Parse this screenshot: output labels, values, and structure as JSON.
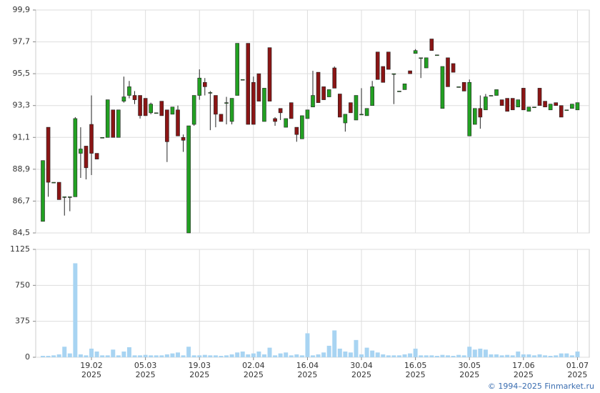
{
  "chart_data": {
    "type": "candlestick",
    "categories": [
      null,
      null,
      null,
      null,
      null,
      null,
      null,
      null,
      null,
      "19.02\n2025",
      null,
      null,
      null,
      null,
      null,
      null,
      null,
      null,
      null,
      "05.03\n2025",
      null,
      null,
      null,
      null,
      null,
      null,
      null,
      null,
      null,
      "19.03\n2025",
      null,
      null,
      null,
      null,
      null,
      null,
      null,
      null,
      null,
      "02.04\n2025",
      null,
      null,
      null,
      null,
      null,
      null,
      null,
      null,
      null,
      "16.04\n2025",
      null,
      null,
      null,
      null,
      null,
      null,
      null,
      null,
      null,
      "30.04\n2025",
      null,
      null,
      null,
      null,
      null,
      null,
      null,
      null,
      null,
      "16.05\n2025",
      null,
      null,
      null,
      null,
      null,
      null,
      null,
      null,
      null,
      "30.05\n2025",
      null,
      null,
      null,
      null,
      null,
      null,
      null,
      null,
      null,
      "17.06\n2025",
      null,
      null,
      null,
      null,
      null,
      null,
      null,
      null,
      null,
      "01.07\n2025"
    ],
    "open": [
      85.3,
      91.8,
      88.0,
      88.0,
      87.0,
      87.0,
      87.0,
      90.0,
      90.5,
      92.0,
      90.0,
      91.1,
      91.1,
      93.0,
      91.1,
      93.6,
      94.0,
      94.0,
      94.0,
      93.8,
      92.8,
      92.8,
      93.6,
      93.0,
      92.7,
      93.0,
      91.1,
      84.5,
      92.0,
      94.0,
      94.9,
      94.2,
      94.0,
      92.7,
      93.5,
      92.2,
      94.0,
      95.1,
      97.6,
      94.9,
      95.5,
      92.2,
      97.3,
      92.4,
      93.1,
      91.8,
      93.5,
      91.8,
      91.0,
      92.4,
      93.2,
      95.6,
      94.6,
      93.9,
      95.9,
      94.1,
      92.1,
      93.5,
      92.3,
      92.7,
      92.6,
      93.3,
      97.0,
      96.0,
      97.0,
      95.5,
      94.3,
      94.4,
      95.7,
      96.9,
      96.6,
      95.9,
      97.9,
      96.8,
      93.1,
      96.6,
      96.2,
      94.6,
      94.9,
      91.2,
      92.0,
      93.1,
      93.0,
      94.0,
      94.0,
      93.7,
      93.8,
      93.8,
      93.2,
      94.5,
      92.9,
      93.2,
      94.5,
      93.6,
      93.0,
      93.5,
      93.3,
      93.0,
      93.1,
      93.0
    ],
    "high": [
      89.5,
      91.8,
      88.0,
      88.0,
      87.0,
      87.0,
      92.5,
      91.8,
      90.5,
      94.0,
      90.0,
      91.1,
      93.7,
      93.0,
      93.0,
      95.3,
      95.0,
      94.3,
      94.0,
      93.8,
      93.5,
      92.8,
      93.6,
      93.0,
      93.2,
      93.3,
      91.3,
      91.9,
      94.0,
      95.8,
      95.2,
      94.3,
      94.0,
      92.7,
      93.9,
      93.8,
      97.6,
      95.1,
      97.6,
      95.3,
      95.5,
      94.5,
      97.3,
      92.5,
      93.1,
      92.4,
      93.5,
      91.8,
      92.6,
      93.0,
      95.7,
      95.6,
      94.6,
      94.4,
      96.0,
      94.1,
      92.7,
      93.5,
      94.0,
      94.5,
      93.1,
      95.0,
      97.0,
      96.0,
      97.0,
      95.5,
      94.3,
      94.8,
      95.7,
      97.2,
      96.6,
      96.6,
      97.9,
      96.8,
      96.0,
      96.6,
      96.2,
      94.6,
      94.9,
      95.1,
      93.1,
      94.0,
      94.1,
      94.0,
      94.4,
      93.7,
      93.8,
      93.8,
      93.7,
      94.5,
      93.2,
      93.2,
      94.5,
      93.6,
      93.4,
      93.5,
      93.3,
      93.0,
      93.4,
      93.5
    ],
    "low": [
      85.3,
      87.0,
      88.0,
      86.8,
      85.7,
      86.0,
      87.0,
      88.3,
      88.2,
      88.5,
      89.6,
      91.1,
      91.1,
      91.1,
      91.1,
      93.5,
      93.8,
      93.4,
      92.4,
      92.6,
      92.7,
      92.8,
      92.6,
      89.4,
      92.7,
      91.2,
      90.1,
      84.5,
      91.9,
      93.7,
      94.0,
      91.6,
      91.8,
      92.2,
      92.0,
      92.0,
      94.0,
      95.1,
      92.0,
      92.0,
      93.6,
      92.2,
      93.6,
      91.9,
      92.3,
      91.8,
      92.4,
      90.8,
      91.0,
      92.4,
      93.2,
      93.5,
      93.7,
      93.9,
      94.5,
      92.5,
      91.5,
      92.8,
      92.3,
      92.7,
      92.6,
      93.3,
      95.1,
      94.9,
      95.8,
      93.4,
      94.3,
      94.4,
      95.5,
      96.9,
      95.2,
      95.9,
      97.1,
      96.8,
      93.1,
      94.6,
      95.6,
      94.6,
      94.3,
      91.2,
      92.0,
      91.7,
      93.0,
      94.0,
      94.0,
      93.3,
      92.9,
      93.0,
      93.2,
      93.0,
      92.9,
      93.2,
      93.3,
      93.2,
      93.0,
      93.3,
      92.5,
      93.0,
      93.1,
      93.0
    ],
    "close": [
      89.5,
      88.0,
      88.0,
      86.8,
      87.0,
      87.0,
      92.4,
      90.3,
      89.0,
      90.0,
      89.6,
      91.1,
      93.7,
      91.1,
      93.0,
      93.9,
      94.6,
      93.7,
      92.6,
      92.6,
      93.4,
      92.8,
      92.6,
      90.8,
      93.2,
      91.2,
      90.9,
      91.9,
      94.0,
      95.2,
      94.6,
      94.2,
      92.7,
      92.2,
      93.5,
      93.8,
      97.6,
      95.1,
      92.0,
      92.0,
      93.6,
      94.5,
      93.6,
      92.2,
      92.8,
      92.4,
      92.4,
      91.3,
      92.6,
      93.0,
      94.0,
      93.5,
      93.7,
      94.4,
      94.5,
      92.5,
      92.7,
      92.8,
      94.0,
      92.7,
      93.1,
      94.6,
      95.1,
      94.9,
      95.8,
      95.5,
      94.3,
      94.8,
      95.5,
      97.1,
      96.6,
      96.6,
      97.1,
      96.8,
      96.0,
      94.6,
      95.6,
      94.6,
      94.3,
      94.9,
      93.1,
      92.5,
      93.9,
      94.0,
      94.4,
      93.3,
      92.9,
      93.0,
      93.7,
      93.0,
      93.2,
      93.2,
      93.3,
      93.2,
      93.4,
      93.3,
      92.5,
      93.0,
      93.4,
      93.5
    ],
    "volume": [
      15,
      15,
      20,
      30,
      110,
      40,
      980,
      30,
      20,
      90,
      60,
      20,
      20,
      80,
      20,
      60,
      105,
      20,
      20,
      25,
      20,
      20,
      20,
      30,
      40,
      50,
      20,
      110,
      20,
      20,
      25,
      20,
      20,
      15,
      20,
      30,
      50,
      60,
      30,
      40,
      60,
      30,
      100,
      20,
      40,
      50,
      20,
      30,
      20,
      250,
      20,
      30,
      50,
      120,
      280,
      90,
      60,
      50,
      180,
      30,
      100,
      70,
      50,
      30,
      20,
      20,
      20,
      30,
      40,
      90,
      20,
      20,
      20,
      15,
      25,
      20,
      15,
      25,
      20,
      110,
      80,
      90,
      80,
      30,
      30,
      20,
      25,
      20,
      60,
      30,
      30,
      20,
      30,
      20,
      15,
      20,
      40,
      40,
      20,
      60
    ],
    "up_color": "#22a022",
    "down_color": "#8b1515",
    "volume_color": "#a8d4f2",
    "ylim": [
      84.5,
      99.9
    ],
    "yticks": [
      {
        "value": 84.5,
        "label": "84,5"
      },
      {
        "value": 86.7,
        "label": "86,7"
      },
      {
        "value": 88.9,
        "label": "88,9"
      },
      {
        "value": 91.1,
        "label": "91,1"
      },
      {
        "value": 93.3,
        "label": "93,3"
      },
      {
        "value": 95.5,
        "label": "95,5"
      },
      {
        "value": 97.7,
        "label": "97,7"
      },
      {
        "value": 99.9,
        "label": "99,9"
      }
    ],
    "volume_ylim": [
      0,
      1125
    ],
    "volume_yticks": [
      0,
      375,
      750,
      1125
    ],
    "grid": true
  },
  "footer": "© 1994–2025 Finmarket.ru"
}
